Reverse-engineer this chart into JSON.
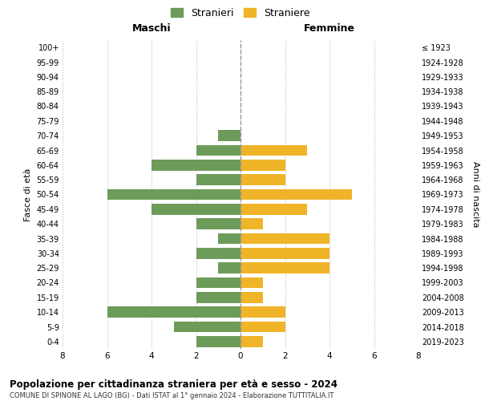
{
  "age_groups": [
    "0-4",
    "5-9",
    "10-14",
    "15-19",
    "20-24",
    "25-29",
    "30-34",
    "35-39",
    "40-44",
    "45-49",
    "50-54",
    "55-59",
    "60-64",
    "65-69",
    "70-74",
    "75-79",
    "80-84",
    "85-89",
    "90-94",
    "95-99",
    "100+"
  ],
  "birth_years": [
    "2019-2023",
    "2014-2018",
    "2009-2013",
    "2004-2008",
    "1999-2003",
    "1994-1998",
    "1989-1993",
    "1984-1988",
    "1979-1983",
    "1974-1978",
    "1969-1973",
    "1964-1968",
    "1959-1963",
    "1954-1958",
    "1949-1953",
    "1944-1948",
    "1939-1943",
    "1934-1938",
    "1929-1933",
    "1924-1928",
    "≤ 1923"
  ],
  "maschi": [
    2,
    3,
    6,
    2,
    2,
    1,
    2,
    1,
    2,
    4,
    6,
    2,
    4,
    2,
    1,
    0,
    0,
    0,
    0,
    0,
    0
  ],
  "femmine": [
    1,
    2,
    2,
    1,
    1,
    4,
    4,
    4,
    1,
    3,
    5,
    2,
    2,
    3,
    0,
    0,
    0,
    0,
    0,
    0,
    0
  ],
  "color_maschi": "#6d9c5a",
  "color_femmine": "#f0b429",
  "title": "Popolazione per cittadinanza straniera per età e sesso - 2024",
  "subtitle": "COMUNE DI SPINONE AL LAGO (BG) - Dati ISTAT al 1° gennaio 2024 - Elaborazione TUTTITALIA.IT",
  "legend_maschi": "Stranieri",
  "legend_femmine": "Straniere",
  "xlabel_left": "Maschi",
  "xlabel_right": "Femmine",
  "ylabel_left": "Fasce di età",
  "ylabel_right": "Anni di nascita",
  "xlim": 8,
  "background_color": "#ffffff"
}
